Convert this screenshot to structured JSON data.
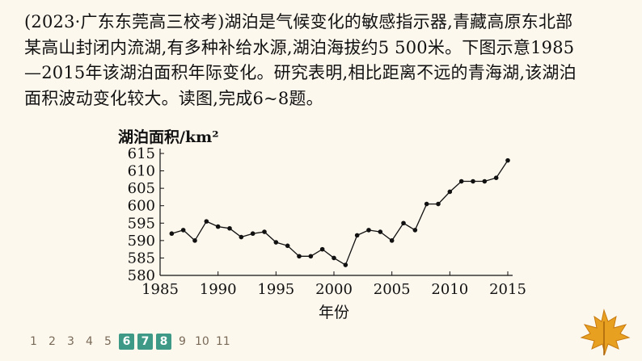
{
  "passage": {
    "lines": [
      "(2023·广东东莞高三校考)湖泊是气候变化的敏感指示器,青藏高原东北部",
      "某高山封闭内流湖,有多种补给水源,湖泊海拔约5 500米。下图示意1985",
      "—2015年该湖泊面积年际变化。研究表明,相比距离不远的青海湖,该湖泊",
      "面积波动变化较大。读图,完成6~8题。"
    ]
  },
  "chart_data": {
    "type": "line",
    "title": "",
    "ylabel": "湖泊面积/km²",
    "xlabel": "年份",
    "xlim": [
      1985,
      2015
    ],
    "ylim": [
      580,
      615
    ],
    "xticks": [
      1985,
      1990,
      1995,
      2000,
      2005,
      2010,
      2015
    ],
    "yticks": [
      580,
      585,
      590,
      595,
      600,
      605,
      610,
      615
    ],
    "grid": false,
    "series": [
      {
        "x": [
          1986,
          1987,
          1988,
          1989,
          1990,
          1991,
          1992,
          1993,
          1994,
          1995,
          1996,
          1997,
          1998,
          1999,
          2000,
          2001,
          2002,
          2003,
          2004,
          2005,
          2006,
          2007,
          2008,
          2009,
          2010,
          2011,
          2012,
          2013,
          2014,
          2015
        ],
        "values": [
          592,
          593,
          590,
          595.5,
          594,
          593.5,
          591,
          592,
          592.5,
          589.5,
          588.5,
          585.5,
          585.5,
          587.5,
          585,
          583,
          591.5,
          593,
          592.5,
          590,
          595,
          593,
          600.5,
          600.5,
          604,
          607,
          607,
          607,
          608,
          613
        ]
      }
    ]
  },
  "nav": {
    "pages": [
      "1",
      "2",
      "3",
      "4",
      "5",
      "6",
      "7",
      "8",
      "9",
      "10",
      "11"
    ],
    "active": [
      "6",
      "7",
      "8"
    ]
  },
  "colors": {
    "background": "#fdf8ee",
    "nav_active": "#3e9a86",
    "leaf": "#e8a020"
  },
  "icons": {
    "corner": "maple-leaf-icon"
  }
}
